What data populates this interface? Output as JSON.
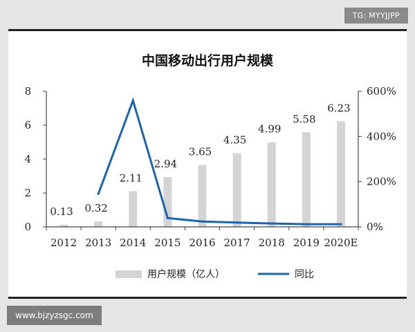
{
  "watermark_top": "TG: MYYJJPP",
  "watermark_bottom": "www.bjzyzsgc.com",
  "chart_data": {
    "type": "bar",
    "title": "中国移动出行用户规模",
    "categories": [
      "2012",
      "2013",
      "2014",
      "2015",
      "2016",
      "2017",
      "2018",
      "2019",
      "2020E"
    ],
    "series": [
      {
        "name": "用户规模（亿人）",
        "kind": "bar",
        "axis": "left",
        "values": [
          0.13,
          0.32,
          2.11,
          2.94,
          3.65,
          4.35,
          4.99,
          5.58,
          6.23
        ],
        "labels": [
          "0.13",
          "0.32",
          "2.11",
          "2.94",
          "3.65",
          "4.35",
          "4.99",
          "5.58",
          "6.23"
        ],
        "color": "#d4d4d4"
      },
      {
        "name": "同比",
        "kind": "line",
        "axis": "right",
        "values": [
          null,
          146,
          559,
          39,
          24,
          19,
          15,
          12,
          12
        ],
        "color": "#1a63b0"
      }
    ],
    "y_left": {
      "min": 0,
      "max": 8,
      "ticks": [
        0,
        2,
        4,
        6,
        8
      ],
      "tick_labels": [
        "0",
        "2",
        "4",
        "6",
        "8"
      ]
    },
    "y_right": {
      "min": 0,
      "max": 600,
      "ticks": [
        0,
        200,
        400,
        600
      ],
      "tick_labels": [
        "0%",
        "200%",
        "400%",
        "600%"
      ]
    },
    "grid": false,
    "legend_position": "bottom"
  }
}
